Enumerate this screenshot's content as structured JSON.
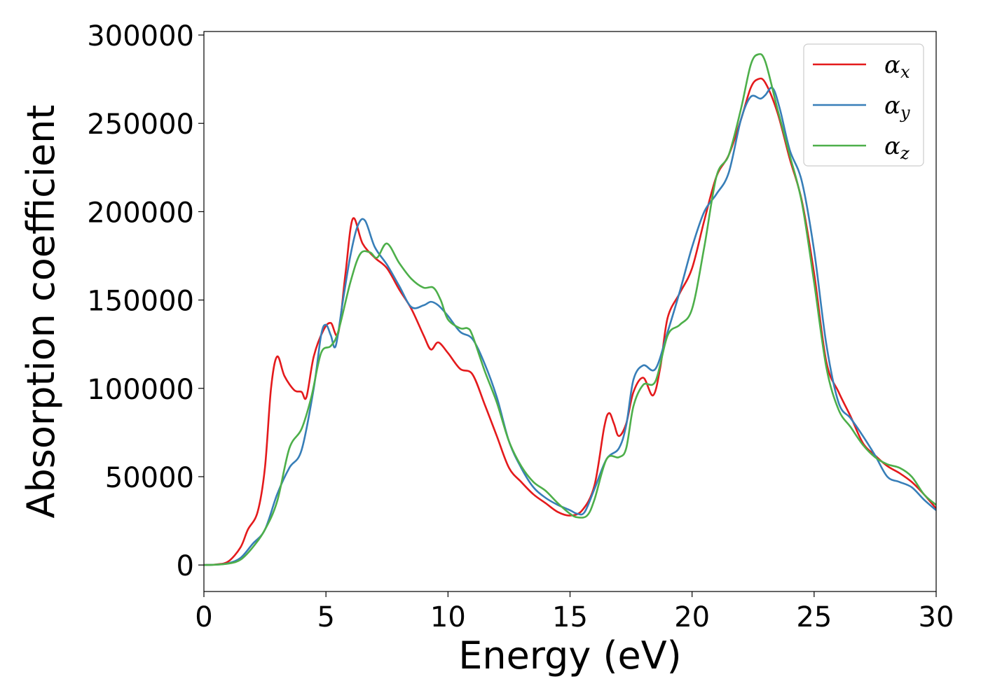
{
  "chart_data": {
    "type": "line",
    "title": "",
    "xlabel": "Energy (eV)",
    "ylabel": "Absorption coefficient",
    "xlim": [
      0,
      30
    ],
    "ylim": [
      -15000,
      302000
    ],
    "xticks": [
      0,
      5,
      10,
      15,
      20,
      25,
      30
    ],
    "yticks": [
      0,
      50000,
      100000,
      150000,
      200000,
      250000,
      300000
    ],
    "xtick_labels": [
      "0",
      "5",
      "10",
      "15",
      "20",
      "25",
      "30"
    ],
    "ytick_labels": [
      "0",
      "50000",
      "100000",
      "150000",
      "200000",
      "250000",
      "300000"
    ],
    "grid": false,
    "legend_position": "top-right",
    "series": [
      {
        "name": "αx",
        "symbol": "α",
        "subscript": "x",
        "color": "#e41a1c",
        "points": [
          [
            0,
            0
          ],
          [
            0.5,
            300
          ],
          [
            1,
            2000
          ],
          [
            1.5,
            10000
          ],
          [
            1.8,
            20000
          ],
          [
            2.2,
            30000
          ],
          [
            2.5,
            55000
          ],
          [
            2.75,
            100000
          ],
          [
            3,
            118000
          ],
          [
            3.3,
            107000
          ],
          [
            3.7,
            99000
          ],
          [
            4,
            98000
          ],
          [
            4.2,
            95000
          ],
          [
            4.5,
            118000
          ],
          [
            4.9,
            133000
          ],
          [
            5.2,
            137000
          ],
          [
            5.5,
            131000
          ],
          [
            5.8,
            165000
          ],
          [
            6.1,
            196000
          ],
          [
            6.5,
            182000
          ],
          [
            7,
            174000
          ],
          [
            7.5,
            168000
          ],
          [
            8,
            156000
          ],
          [
            8.5,
            145000
          ],
          [
            9,
            130000
          ],
          [
            9.3,
            122000
          ],
          [
            9.6,
            126000
          ],
          [
            10,
            120000
          ],
          [
            10.5,
            111000
          ],
          [
            11,
            108000
          ],
          [
            11.5,
            91000
          ],
          [
            12,
            73000
          ],
          [
            12.5,
            55000
          ],
          [
            13,
            47000
          ],
          [
            13.5,
            40000
          ],
          [
            14,
            35000
          ],
          [
            14.5,
            30000
          ],
          [
            15,
            28000
          ],
          [
            15.5,
            31000
          ],
          [
            16,
            45000
          ],
          [
            16.4,
            78000
          ],
          [
            16.6,
            86000
          ],
          [
            16.8,
            80000
          ],
          [
            17,
            73000
          ],
          [
            17.3,
            80000
          ],
          [
            17.6,
            98000
          ],
          [
            18,
            106000
          ],
          [
            18.4,
            96000
          ],
          [
            18.7,
            112000
          ],
          [
            19,
            140000
          ],
          [
            19.5,
            154000
          ],
          [
            20,
            168000
          ],
          [
            20.5,
            195000
          ],
          [
            21,
            220000
          ],
          [
            21.5,
            232000
          ],
          [
            22,
            252000
          ],
          [
            22.4,
            270000
          ],
          [
            22.7,
            275000
          ],
          [
            23,
            273000
          ],
          [
            23.5,
            256000
          ],
          [
            24,
            230000
          ],
          [
            24.5,
            206000
          ],
          [
            25,
            165000
          ],
          [
            25.5,
            115000
          ],
          [
            26,
            98000
          ],
          [
            26.5,
            84000
          ],
          [
            27,
            69000
          ],
          [
            27.5,
            62000
          ],
          [
            28,
            56000
          ],
          [
            28.5,
            52000
          ],
          [
            29,
            47000
          ],
          [
            29.5,
            40000
          ],
          [
            30,
            32000
          ]
        ]
      },
      {
        "name": "αy",
        "symbol": "α",
        "subscript": "y",
        "color": "#377eb8",
        "points": [
          [
            0,
            0
          ],
          [
            0.5,
            200
          ],
          [
            1,
            1000
          ],
          [
            1.5,
            4000
          ],
          [
            2,
            12000
          ],
          [
            2.5,
            20000
          ],
          [
            3,
            40000
          ],
          [
            3.5,
            55000
          ],
          [
            4,
            65000
          ],
          [
            4.5,
            100000
          ],
          [
            4.8,
            130000
          ],
          [
            5,
            136000
          ],
          [
            5.2,
            130000
          ],
          [
            5.4,
            124000
          ],
          [
            5.7,
            150000
          ],
          [
            6,
            175000
          ],
          [
            6.3,
            192000
          ],
          [
            6.6,
            195000
          ],
          [
            7,
            180000
          ],
          [
            7.5,
            170000
          ],
          [
            8,
            158000
          ],
          [
            8.5,
            146000
          ],
          [
            9,
            147000
          ],
          [
            9.3,
            149000
          ],
          [
            9.6,
            147000
          ],
          [
            10,
            141000
          ],
          [
            10.5,
            132000
          ],
          [
            11,
            128000
          ],
          [
            11.5,
            114000
          ],
          [
            12,
            95000
          ],
          [
            12.5,
            70000
          ],
          [
            13,
            55000
          ],
          [
            13.5,
            44000
          ],
          [
            14,
            38000
          ],
          [
            14.5,
            34000
          ],
          [
            15,
            31000
          ],
          [
            15.3,
            29000
          ],
          [
            15.6,
            30000
          ],
          [
            16,
            43000
          ],
          [
            16.5,
            60000
          ],
          [
            17,
            66000
          ],
          [
            17.3,
            79000
          ],
          [
            17.6,
            105000
          ],
          [
            18,
            113000
          ],
          [
            18.5,
            111000
          ],
          [
            19,
            132000
          ],
          [
            19.5,
            155000
          ],
          [
            20,
            180000
          ],
          [
            20.5,
            200000
          ],
          [
            21,
            210000
          ],
          [
            21.5,
            222000
          ],
          [
            22,
            252000
          ],
          [
            22.4,
            265000
          ],
          [
            22.8,
            264000
          ],
          [
            23,
            266000
          ],
          [
            23.3,
            270000
          ],
          [
            23.6,
            258000
          ],
          [
            24,
            235000
          ],
          [
            24.5,
            217000
          ],
          [
            25,
            178000
          ],
          [
            25.5,
            125000
          ],
          [
            26,
            92000
          ],
          [
            26.5,
            83000
          ],
          [
            27,
            73000
          ],
          [
            27.5,
            62000
          ],
          [
            28,
            50000
          ],
          [
            28.5,
            47000
          ],
          [
            29,
            44000
          ],
          [
            29.5,
            37000
          ],
          [
            30,
            31000
          ]
        ]
      },
      {
        "name": "αz",
        "symbol": "α",
        "subscript": "z",
        "color": "#4daf4a",
        "points": [
          [
            0,
            0
          ],
          [
            0.5,
            200
          ],
          [
            1,
            800
          ],
          [
            1.5,
            3000
          ],
          [
            2,
            10000
          ],
          [
            2.5,
            20000
          ],
          [
            3,
            36000
          ],
          [
            3.5,
            66000
          ],
          [
            4,
            77000
          ],
          [
            4.4,
            95000
          ],
          [
            4.8,
            120000
          ],
          [
            5.2,
            124000
          ],
          [
            5.5,
            132000
          ],
          [
            6,
            160000
          ],
          [
            6.4,
            176000
          ],
          [
            6.8,
            177000
          ],
          [
            7.1,
            174000
          ],
          [
            7.5,
            182000
          ],
          [
            8,
            171000
          ],
          [
            8.5,
            162000
          ],
          [
            9,
            157000
          ],
          [
            9.4,
            157000
          ],
          [
            9.7,
            150000
          ],
          [
            10,
            139000
          ],
          [
            10.5,
            134000
          ],
          [
            10.8,
            134000
          ],
          [
            11,
            130000
          ],
          [
            11.5,
            110000
          ],
          [
            12,
            92000
          ],
          [
            12.5,
            70000
          ],
          [
            13,
            56000
          ],
          [
            13.5,
            47000
          ],
          [
            14,
            42000
          ],
          [
            14.5,
            35000
          ],
          [
            15,
            29000
          ],
          [
            15.3,
            27000
          ],
          [
            15.7,
            28000
          ],
          [
            16,
            37000
          ],
          [
            16.5,
            60000
          ],
          [
            17,
            61000
          ],
          [
            17.3,
            66000
          ],
          [
            17.6,
            90000
          ],
          [
            18,
            102000
          ],
          [
            18.5,
            104000
          ],
          [
            19,
            130000
          ],
          [
            19.5,
            136000
          ],
          [
            20,
            145000
          ],
          [
            20.5,
            180000
          ],
          [
            21,
            220000
          ],
          [
            21.5,
            232000
          ],
          [
            22,
            258000
          ],
          [
            22.4,
            283000
          ],
          [
            22.7,
            289000
          ],
          [
            23,
            285000
          ],
          [
            23.5,
            258000
          ],
          [
            24,
            232000
          ],
          [
            24.5,
            205000
          ],
          [
            25,
            160000
          ],
          [
            25.5,
            112000
          ],
          [
            26,
            88000
          ],
          [
            26.5,
            78000
          ],
          [
            27,
            68000
          ],
          [
            27.5,
            61000
          ],
          [
            28,
            57000
          ],
          [
            28.5,
            55000
          ],
          [
            29,
            50000
          ],
          [
            29.5,
            40000
          ],
          [
            30,
            34000
          ]
        ]
      }
    ]
  }
}
